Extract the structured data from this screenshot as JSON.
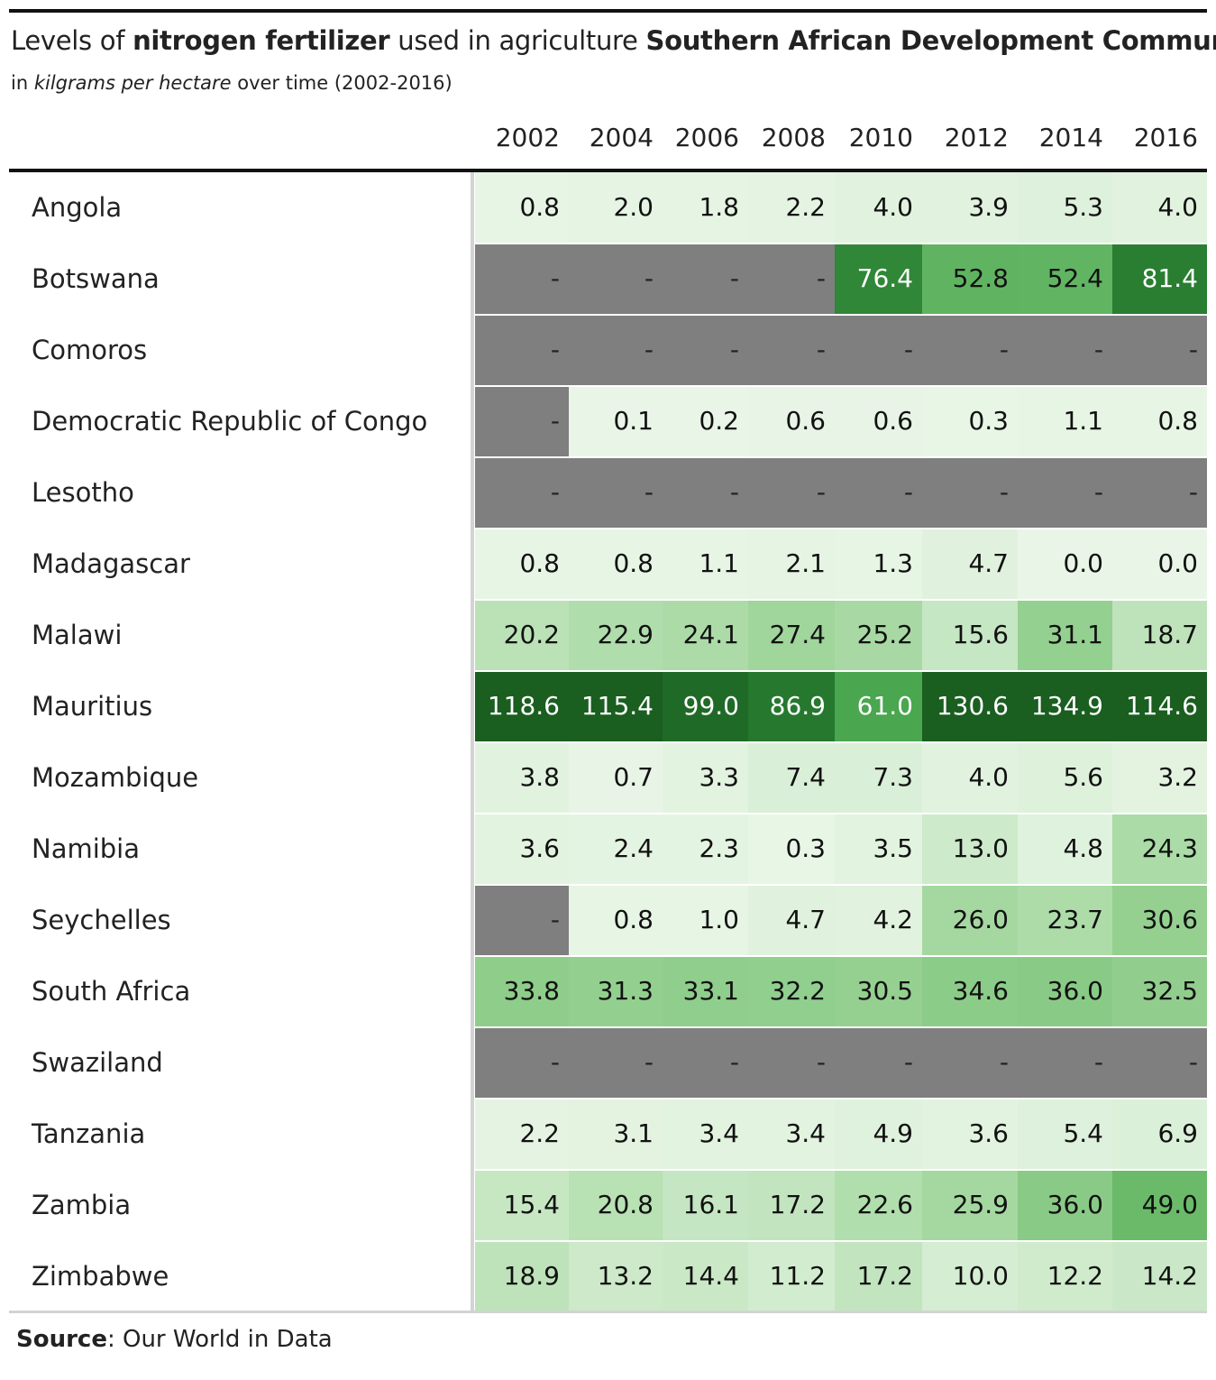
{
  "header": {
    "title_parts": [
      "Levels of ",
      "nitrogen fertilizer",
      " used in agriculture ",
      "Southern African Development Community"
    ],
    "subtitle_parts": [
      "in ",
      "kilgrams per hectare",
      " over time (2002-2016)"
    ]
  },
  "footer": {
    "source_label": "Source",
    "source_text": ": Our World in Data"
  },
  "colors": {
    "missing": "#7f7f7f",
    "scale": [
      "#e8f5e6",
      "#c5e4c2",
      "#93ce8f",
      "#5eb45e",
      "#1a5e20"
    ]
  },
  "chart_data": {
    "type": "table",
    "title": "Levels of nitrogen fertilizer used in agriculture Southern African Development Community",
    "subtitle": "in kilgrams per hectare over time (2002-2016)",
    "columns": [
      "2002",
      "2004",
      "2006",
      "2008",
      "2010",
      "2012",
      "2014",
      "2016"
    ],
    "missing_symbol": "-",
    "rows": [
      {
        "country": "Angola",
        "values": [
          "0.8",
          "2.0",
          "1.8",
          "2.2",
          "4.0",
          "3.9",
          "5.3",
          "4.0"
        ]
      },
      {
        "country": "Botswana",
        "values": [
          "-",
          "-",
          "-",
          "-",
          "76.4",
          "52.8",
          "52.4",
          "81.4"
        ]
      },
      {
        "country": "Comoros",
        "values": [
          "-",
          "-",
          "-",
          "-",
          "-",
          "-",
          "-",
          "-"
        ]
      },
      {
        "country": "Democratic Republic of Congo",
        "values": [
          "-",
          "0.1",
          "0.2",
          "0.6",
          "0.6",
          "0.3",
          "1.1",
          "0.8"
        ]
      },
      {
        "country": "Lesotho",
        "values": [
          "-",
          "-",
          "-",
          "-",
          "-",
          "-",
          "-",
          "-"
        ]
      },
      {
        "country": "Madagascar",
        "values": [
          "0.8",
          "0.8",
          "1.1",
          "2.1",
          "1.3",
          "4.7",
          "0.0",
          "0.0"
        ]
      },
      {
        "country": "Malawi",
        "values": [
          "20.2",
          "22.9",
          "24.1",
          "27.4",
          "25.2",
          "15.6",
          "31.1",
          "18.7"
        ]
      },
      {
        "country": "Mauritius",
        "values": [
          "118.6",
          "115.4",
          "99.0",
          "86.9",
          "61.0",
          "130.6",
          "134.9",
          "114.6"
        ]
      },
      {
        "country": "Mozambique",
        "values": [
          "3.8",
          "0.7",
          "3.3",
          "7.4",
          "7.3",
          "4.0",
          "5.6",
          "3.2"
        ]
      },
      {
        "country": "Namibia",
        "values": [
          "3.6",
          "2.4",
          "2.3",
          "0.3",
          "3.5",
          "13.0",
          "4.8",
          "24.3"
        ]
      },
      {
        "country": "Seychelles",
        "values": [
          "-",
          "0.8",
          "1.0",
          "4.7",
          "4.2",
          "26.0",
          "23.7",
          "30.6"
        ]
      },
      {
        "country": "South Africa",
        "values": [
          "33.8",
          "31.3",
          "33.1",
          "32.2",
          "30.5",
          "34.6",
          "36.0",
          "32.5"
        ]
      },
      {
        "country": "Swaziland",
        "values": [
          "-",
          "-",
          "-",
          "-",
          "-",
          "-",
          "-",
          "-"
        ]
      },
      {
        "country": "Tanzania",
        "values": [
          "2.2",
          "3.1",
          "3.4",
          "3.4",
          "4.9",
          "3.6",
          "5.4",
          "6.9"
        ]
      },
      {
        "country": "Zambia",
        "values": [
          "15.4",
          "20.8",
          "16.1",
          "17.2",
          "22.6",
          "25.9",
          "36.0",
          "49.0"
        ]
      },
      {
        "country": "Zimbabwe",
        "values": [
          "18.9",
          "13.2",
          "14.4",
          "11.2",
          "17.2",
          "10.0",
          "12.2",
          "14.2"
        ]
      }
    ]
  }
}
